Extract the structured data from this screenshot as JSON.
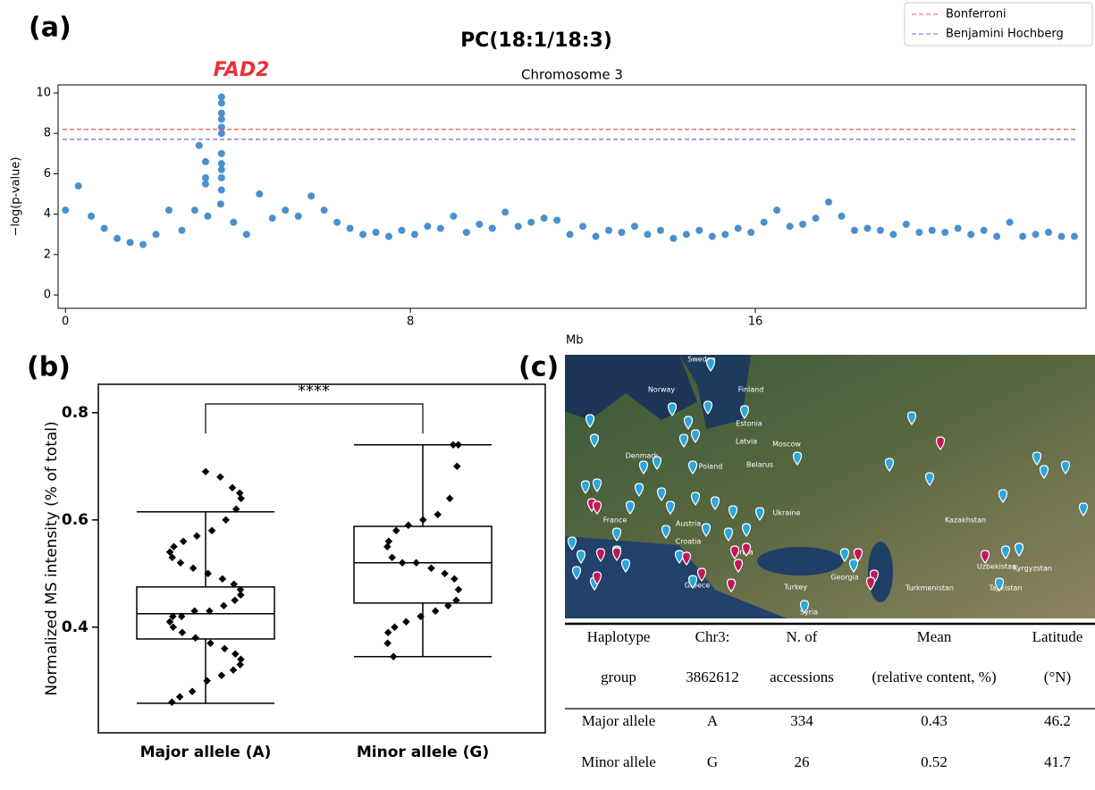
{
  "panels": [
    "(a)",
    "(b)",
    "(c)"
  ],
  "chart_data": [
    {
      "type": "scatter",
      "title": "PC(18:1/18:3)",
      "subtitle": "Chromosome 3",
      "annotation": "FAD2",
      "x_label": "Mb",
      "y_label": "−log(p-value)",
      "color": "#4a90cf",
      "xlim": [
        -0.17,
        23.67
      ],
      "ylim": [
        -0.66,
        10.4
      ],
      "xticks": [
        0,
        8,
        16
      ],
      "yticks": [
        0,
        2,
        4,
        6,
        8,
        10
      ],
      "legend": "upper right",
      "lines": [
        {
          "name": "Bonferroni",
          "color": "#e8534f",
          "value": 8.2
        },
        {
          "name": "Benjamini Hochberg",
          "color": "#6a6ae0",
          "value": 7.7
        }
      ],
      "x": [
        0.0,
        0.3,
        0.6,
        0.9,
        1.2,
        1.5,
        1.8,
        2.1,
        2.4,
        2.7,
        3.0,
        3.3,
        3.6,
        3.9,
        4.2,
        4.5,
        4.8,
        5.1,
        5.4,
        5.7,
        6.0,
        6.3,
        6.6,
        6.9,
        7.2,
        7.5,
        7.8,
        8.1,
        8.4,
        8.7,
        9.0,
        9.3,
        9.6,
        9.9,
        10.2,
        10.5,
        10.8,
        11.1,
        11.4,
        11.7,
        12.0,
        12.3,
        12.6,
        12.9,
        13.2,
        13.5,
        13.8,
        14.1,
        14.4,
        14.7,
        15.0,
        15.3,
        15.6,
        15.9,
        16.2,
        16.5,
        16.8,
        17.1,
        17.4,
        17.7,
        18.0,
        18.3,
        18.6,
        18.9,
        19.2,
        19.5,
        19.8,
        20.1,
        20.4,
        20.7,
        21.0,
        21.3,
        21.6,
        21.9,
        22.2,
        22.5,
        22.8,
        23.1,
        23.4,
        3.62,
        3.62,
        3.62,
        3.62,
        3.62,
        3.62,
        3.62,
        3.62,
        3.62,
        3.62,
        3.62,
        3.1,
        3.25,
        3.25,
        3.25
      ],
      "values": [
        4.2,
        5.4,
        3.9,
        3.3,
        2.8,
        2.6,
        2.5,
        3.0,
        4.2,
        3.2,
        4.2,
        3.9,
        4.5,
        3.6,
        3.0,
        5.0,
        3.8,
        4.2,
        3.9,
        4.9,
        4.2,
        3.6,
        3.3,
        3.0,
        3.1,
        2.9,
        3.2,
        3.0,
        3.4,
        3.3,
        3.9,
        3.1,
        3.5,
        3.3,
        4.1,
        3.4,
        3.6,
        3.8,
        3.7,
        3.0,
        3.4,
        2.9,
        3.2,
        3.1,
        3.4,
        3.0,
        3.2,
        2.8,
        3.0,
        3.2,
        2.9,
        3.0,
        3.3,
        3.1,
        3.6,
        4.2,
        3.4,
        3.5,
        3.8,
        4.6,
        3.9,
        3.2,
        3.3,
        3.2,
        3.0,
        3.5,
        3.1,
        3.2,
        3.1,
        3.3,
        3.0,
        3.2,
        2.9,
        3.6,
        2.9,
        3.0,
        3.1,
        2.9,
        2.9,
        9.8,
        9.5,
        9.0,
        8.7,
        8.3,
        8.0,
        7.0,
        6.5,
        6.2,
        5.8,
        5.2,
        7.4,
        6.6,
        5.8,
        5.5
      ]
    },
    {
      "type": "box",
      "y_label": "Normalized MS intensity (% of total)",
      "annotation": "****",
      "categories": [
        "Major allele (A)",
        "Minor allele (G)"
      ],
      "ylim": [
        0.203,
        0.853
      ],
      "yticks": [
        0.4,
        0.6,
        0.8
      ],
      "boxes": [
        {
          "min": 0.258,
          "q1": 0.378,
          "median": 0.425,
          "q3": 0.475,
          "max": 0.615,
          "points": [
            0.69,
            0.68,
            0.66,
            0.65,
            0.64,
            0.62,
            0.6,
            0.58,
            0.57,
            0.56,
            0.55,
            0.54,
            0.53,
            0.52,
            0.51,
            0.5,
            0.49,
            0.48,
            0.47,
            0.46,
            0.45,
            0.44,
            0.43,
            0.43,
            0.42,
            0.42,
            0.41,
            0.4,
            0.39,
            0.38,
            0.37,
            0.36,
            0.35,
            0.34,
            0.33,
            0.32,
            0.31,
            0.3,
            0.28,
            0.27,
            0.26
          ]
        },
        {
          "min": 0.345,
          "q1": 0.445,
          "median": 0.52,
          "q3": 0.588,
          "max": 0.74,
          "points": [
            0.74,
            0.74,
            0.7,
            0.64,
            0.61,
            0.6,
            0.59,
            0.58,
            0.56,
            0.55,
            0.53,
            0.52,
            0.52,
            0.51,
            0.5,
            0.49,
            0.47,
            0.45,
            0.44,
            0.43,
            0.42,
            0.41,
            0.4,
            0.39,
            0.37,
            0.345
          ]
        }
      ]
    }
  ],
  "map": {
    "labels": [
      "Sweden",
      "Norway",
      "Finland",
      "Estonia",
      "Latvia",
      "Denmark",
      "Poland",
      "Belarus",
      "Ukraine",
      "Moscow",
      "France",
      "Austria",
      "Croatia",
      "Serbia",
      "Turkey",
      "Kazakhstan",
      "Uzbekistan",
      "Kyrgyzstan",
      "Tajikistan",
      "Turkmenistan",
      "Georgia",
      "Syria",
      "Greece"
    ]
  },
  "table": {
    "header": [
      [
        "Haplotype",
        "Chr3:",
        "N. of",
        "Mean",
        "Latitude"
      ],
      [
        "group",
        "3862612",
        "accessions",
        "(relative content, %)",
        "(°N)"
      ]
    ],
    "rows": [
      [
        "Major allele",
        "A",
        "334",
        "0.43",
        "46.2"
      ],
      [
        "Minor allele",
        "G",
        "26",
        "0.52",
        "41.7"
      ]
    ]
  }
}
